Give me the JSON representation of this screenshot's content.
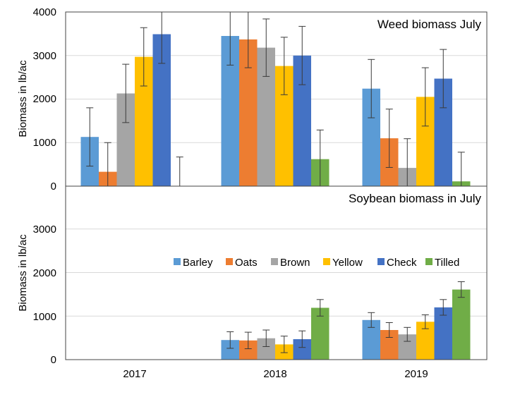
{
  "chart_data": [
    {
      "type": "bar",
      "title": "Weed biomass July",
      "ylabel": "Biomass in lb/ac",
      "xlabel": "",
      "ylim": [
        0,
        4000
      ],
      "yticks": [
        "0",
        "1000",
        "2000",
        "3000",
        "4000"
      ],
      "categories": [
        "2017",
        "2018",
        "2019"
      ],
      "series": [
        {
          "name": "Barley",
          "values": [
            1130,
            3450,
            2240
          ],
          "errors": [
            670,
            670,
            670
          ]
        },
        {
          "name": "Oats",
          "values": [
            330,
            3370,
            1100
          ],
          "errors": [
            670,
            650,
            670
          ]
        },
        {
          "name": "Brown",
          "values": [
            2130,
            3180,
            420
          ],
          "errors": [
            670,
            660,
            670
          ]
        },
        {
          "name": "Yellow",
          "values": [
            2970,
            2760,
            2050
          ],
          "errors": [
            670,
            660,
            670
          ]
        },
        {
          "name": "Check",
          "values": [
            3490,
            3000,
            2470
          ],
          "errors": [
            670,
            670,
            670
          ]
        },
        {
          "name": "Tilled",
          "values": [
            0,
            620,
            110
          ],
          "errors": [
            670,
            670,
            670
          ]
        }
      ],
      "grid": true
    },
    {
      "type": "bar",
      "title": "Soybean biomass in July",
      "ylabel": "Biomass in lb/ac",
      "xlabel": "",
      "ylim": [
        0,
        4000
      ],
      "yticks": [
        "0",
        "1000",
        "2000",
        "3000"
      ],
      "categories": [
        "2017",
        "2018",
        "2019"
      ],
      "series": [
        {
          "name": "Barley",
          "values": [
            0,
            450,
            910
          ],
          "errors": [
            0,
            190,
            170
          ]
        },
        {
          "name": "Oats",
          "values": [
            0,
            440,
            680
          ],
          "errors": [
            0,
            190,
            170
          ]
        },
        {
          "name": "Brown",
          "values": [
            0,
            490,
            580
          ],
          "errors": [
            0,
            190,
            160
          ]
        },
        {
          "name": "Yellow",
          "values": [
            0,
            350,
            870
          ],
          "errors": [
            0,
            190,
            160
          ]
        },
        {
          "name": "Check",
          "values": [
            0,
            470,
            1200
          ],
          "errors": [
            0,
            190,
            180
          ]
        },
        {
          "name": "Tilled",
          "values": [
            0,
            1190,
            1610
          ],
          "errors": [
            0,
            190,
            180
          ]
        }
      ],
      "grid": true,
      "legend_position": "middle-right"
    }
  ],
  "colors": {
    "Barley": "#5B9BD5",
    "Oats": "#ED7D31",
    "Brown": "#A5A5A5",
    "Yellow": "#FFC000",
    "Check": "#4472C4",
    "Tilled": "#70AD47"
  }
}
